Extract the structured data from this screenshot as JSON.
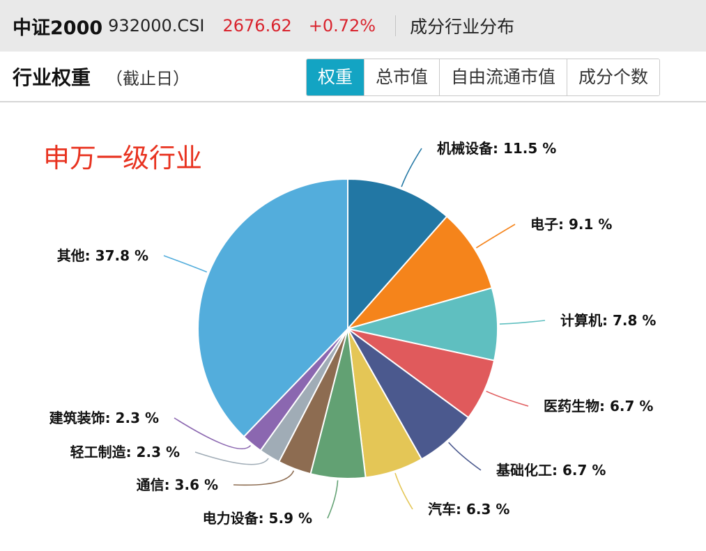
{
  "header": {
    "index_name": "中证2000",
    "index_code": "932000.CSI",
    "price": "2676.62",
    "change": "+0.72%",
    "section": "成分行业分布"
  },
  "weights": {
    "title": "行业权重",
    "subtitle": "（截止日）",
    "tabs": [
      "权重",
      "总市值",
      "自由流通市值",
      "成分个数"
    ],
    "active_tab": "权重"
  },
  "chart_data": {
    "type": "pie",
    "title": "申万一级行业",
    "unit": "%",
    "slices": [
      {
        "label": "机械设备",
        "value": 11.5,
        "color": "#2277a4"
      },
      {
        "label": "电子",
        "value": 9.1,
        "color": "#f5841b"
      },
      {
        "label": "计算机",
        "value": 7.8,
        "color": "#5fbfc0"
      },
      {
        "label": "医药生物",
        "value": 6.7,
        "color": "#e05a5c"
      },
      {
        "label": "基础化工",
        "value": 6.7,
        "color": "#4b598e"
      },
      {
        "label": "汽车",
        "value": 6.3,
        "color": "#e4c656"
      },
      {
        "label": "电力设备",
        "value": 5.9,
        "color": "#62a173"
      },
      {
        "label": "通信",
        "value": 3.6,
        "color": "#8d6c51"
      },
      {
        "label": "轻工制造",
        "value": 2.3,
        "color": "#a0acb6"
      },
      {
        "label": "建筑装饰",
        "value": 2.3,
        "color": "#8b67b0"
      },
      {
        "label": "其他",
        "value": 37.8,
        "color": "#53addc"
      }
    ]
  }
}
